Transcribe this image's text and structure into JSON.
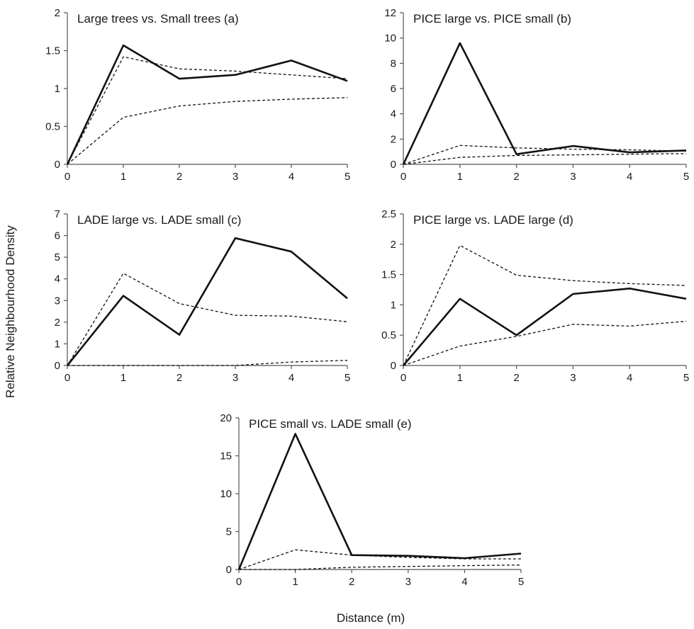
{
  "figure": {
    "ylabel": "Relative Neighbourhood Density",
    "xlabel": "Distance (m)"
  },
  "chart_data": [
    {
      "type": "line",
      "title": "Large trees vs. Small trees (a)",
      "x": [
        0,
        1,
        2,
        3,
        4,
        5
      ],
      "xlim": [
        0,
        5
      ],
      "ylim": [
        0,
        2
      ],
      "yticks": [
        0,
        0.5,
        1,
        1.5,
        2
      ],
      "xticks": [
        0,
        1,
        2,
        3,
        4,
        5
      ],
      "series": [
        {
          "style": "solid",
          "values": [
            0,
            1.57,
            1.13,
            1.18,
            1.37,
            1.1
          ]
        },
        {
          "style": "dashed",
          "values": [
            0,
            1.42,
            1.26,
            1.23,
            1.18,
            1.13
          ]
        },
        {
          "style": "dashed",
          "values": [
            0,
            0.62,
            0.77,
            0.83,
            0.86,
            0.88
          ]
        }
      ]
    },
    {
      "type": "line",
      "title": "PICE large vs. PICE small (b)",
      "x": [
        0,
        1,
        2,
        3,
        4,
        5
      ],
      "xlim": [
        0,
        5
      ],
      "ylim": [
        0,
        12
      ],
      "yticks": [
        0,
        2,
        4,
        6,
        8,
        10,
        12
      ],
      "xticks": [
        0,
        1,
        2,
        3,
        4,
        5
      ],
      "series": [
        {
          "style": "solid",
          "values": [
            0,
            9.6,
            0.8,
            1.45,
            0.95,
            1.1
          ]
        },
        {
          "style": "dashed",
          "values": [
            0,
            1.5,
            1.3,
            1.2,
            1.15,
            1.05
          ]
        },
        {
          "style": "dashed",
          "values": [
            0,
            0.55,
            0.7,
            0.75,
            0.8,
            0.85
          ]
        }
      ]
    },
    {
      "type": "line",
      "title": "LADE large vs. LADE small (c)",
      "x": [
        0,
        1,
        2,
        3,
        4,
        5
      ],
      "xlim": [
        0,
        5
      ],
      "ylim": [
        0,
        7
      ],
      "yticks": [
        0,
        1,
        2,
        3,
        4,
        5,
        6,
        7
      ],
      "xticks": [
        0,
        1,
        2,
        3,
        4,
        5
      ],
      "series": [
        {
          "style": "solid",
          "values": [
            0,
            3.22,
            1.42,
            5.88,
            5.26,
            3.1
          ]
        },
        {
          "style": "dashed",
          "values": [
            0,
            4.26,
            2.86,
            2.32,
            2.28,
            2.02
          ]
        },
        {
          "style": "dashed",
          "values": [
            0,
            0,
            0,
            0,
            0.16,
            0.24
          ]
        }
      ]
    },
    {
      "type": "line",
      "title": "PICE large vs. LADE large (d)",
      "x": [
        0,
        1,
        2,
        3,
        4,
        5
      ],
      "xlim": [
        0,
        5
      ],
      "ylim": [
        0,
        2.5
      ],
      "yticks": [
        0,
        0.5,
        1,
        1.5,
        2,
        2.5
      ],
      "xticks": [
        0,
        1,
        2,
        3,
        4,
        5
      ],
      "series": [
        {
          "style": "solid",
          "values": [
            0,
            1.1,
            0.5,
            1.18,
            1.27,
            1.1
          ]
        },
        {
          "style": "dashed",
          "values": [
            0,
            1.98,
            1.49,
            1.4,
            1.35,
            1.32
          ]
        },
        {
          "style": "dashed",
          "values": [
            0,
            0.32,
            0.48,
            0.68,
            0.65,
            0.73
          ]
        }
      ]
    },
    {
      "type": "line",
      "title": "PICE small vs. LADE small (e)",
      "x": [
        0,
        1,
        2,
        3,
        4,
        5
      ],
      "xlim": [
        0,
        5
      ],
      "ylim": [
        0,
        20
      ],
      "yticks": [
        0,
        5,
        10,
        15,
        20
      ],
      "xticks": [
        0,
        1,
        2,
        3,
        4,
        5
      ],
      "series": [
        {
          "style": "solid",
          "values": [
            0,
            17.9,
            1.9,
            1.8,
            1.5,
            2.1
          ]
        },
        {
          "style": "dashed",
          "values": [
            0,
            2.6,
            1.9,
            1.6,
            1.4,
            1.4
          ]
        },
        {
          "style": "dashed",
          "values": [
            0,
            0,
            0.3,
            0.4,
            0.5,
            0.6
          ]
        }
      ]
    }
  ]
}
